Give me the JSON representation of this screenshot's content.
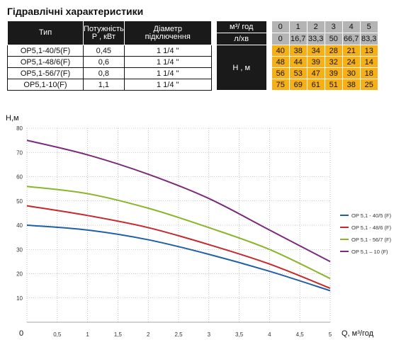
{
  "title": "Гідравлічні характеристики",
  "table": {
    "headers": {
      "type": "Тип",
      "power": [
        "Потужність",
        "P , кВт"
      ],
      "diameter": [
        "Діаметр",
        "підключення"
      ],
      "flow_m3": "м³/ год",
      "flow_l": "л/хв",
      "head": "H , м"
    },
    "flow_m3_values": [
      "0",
      "1",
      "2",
      "3",
      "4",
      "5"
    ],
    "flow_l_values": [
      "0",
      "16,7",
      "33,3",
      "50",
      "66,7",
      "83,3"
    ],
    "rows": [
      {
        "type": "OP5,1-40/5(F)",
        "power": "0,45",
        "diameter": "1 1/4 \"",
        "head": [
          "40",
          "38",
          "34",
          "28",
          "21",
          "13"
        ]
      },
      {
        "type": "OP5,1-48/6(F)",
        "power": "0,6",
        "diameter": "1 1/4 \"",
        "head": [
          "48",
          "44",
          "39",
          "32",
          "24",
          "14"
        ]
      },
      {
        "type": "OP5,1-56/7(F)",
        "power": "0,8",
        "diameter": "1 1/4 \"",
        "head": [
          "56",
          "53",
          "47",
          "39",
          "30",
          "18"
        ]
      },
      {
        "type": "OP5,1-10(F)",
        "power": "1,1",
        "diameter": "1 1/4 \"",
        "head": [
          "75",
          "69",
          "61",
          "51",
          "38",
          "25"
        ]
      }
    ]
  },
  "chart_data": {
    "type": "line",
    "ylabel": "H,м",
    "xlabel": "Q, м³/год",
    "x": [
      0,
      1,
      2,
      3,
      4,
      5
    ],
    "xticks": [
      "0",
      "0,5",
      "1",
      "1,5",
      "2",
      "2,5",
      "3",
      "3,5",
      "4",
      "4,5",
      "5"
    ],
    "xlim": [
      0,
      5
    ],
    "ylim": [
      0,
      80
    ],
    "yticks": [
      10,
      20,
      30,
      40,
      50,
      60,
      70,
      80
    ],
    "grid": "dotted",
    "legend_position": "right",
    "series": [
      {
        "name": "OP 5,1 - 40/5 (F)",
        "color": "#1f5fa8",
        "values": [
          40,
          38,
          34,
          28,
          21,
          13
        ]
      },
      {
        "name": "OP 5,1 - 48/6 (F)",
        "color": "#c7282a",
        "values": [
          48,
          44,
          39,
          32,
          24,
          14
        ]
      },
      {
        "name": "OP 5,1 - 56/7 (F)",
        "color": "#8bb52a",
        "values": [
          56,
          53,
          47,
          39,
          30,
          18
        ]
      },
      {
        "name": "OP 5,1 – 10 (F)",
        "color": "#7b2a7e",
        "values": [
          75,
          69,
          61,
          51,
          38,
          25
        ]
      }
    ]
  }
}
